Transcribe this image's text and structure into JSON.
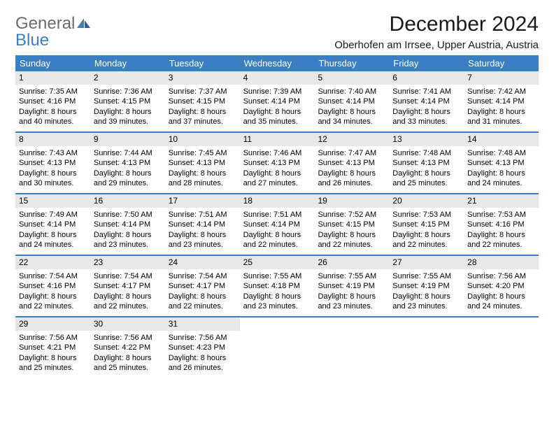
{
  "logo": {
    "general": "General",
    "blue": "Blue"
  },
  "title": "December 2024",
  "location": "Oberhofen am Irrsee, Upper Austria, Austria",
  "colors": {
    "header_bg": "#3a7fc4",
    "header_text": "#ffffff",
    "daynum_bg": "#e8e8e8",
    "week_divider": "#3a7fc4",
    "logo_gray": "#6c6c6c",
    "logo_blue": "#3a7fc4",
    "page_bg": "#ffffff",
    "text": "#000000"
  },
  "day_labels": [
    "Sunday",
    "Monday",
    "Tuesday",
    "Wednesday",
    "Thursday",
    "Friday",
    "Saturday"
  ],
  "weeks": [
    [
      {
        "num": "1",
        "sunrise": "Sunrise: 7:35 AM",
        "sunset": "Sunset: 4:16 PM",
        "daylight1": "Daylight: 8 hours",
        "daylight2": "and 40 minutes."
      },
      {
        "num": "2",
        "sunrise": "Sunrise: 7:36 AM",
        "sunset": "Sunset: 4:15 PM",
        "daylight1": "Daylight: 8 hours",
        "daylight2": "and 39 minutes."
      },
      {
        "num": "3",
        "sunrise": "Sunrise: 7:37 AM",
        "sunset": "Sunset: 4:15 PM",
        "daylight1": "Daylight: 8 hours",
        "daylight2": "and 37 minutes."
      },
      {
        "num": "4",
        "sunrise": "Sunrise: 7:39 AM",
        "sunset": "Sunset: 4:14 PM",
        "daylight1": "Daylight: 8 hours",
        "daylight2": "and 35 minutes."
      },
      {
        "num": "5",
        "sunrise": "Sunrise: 7:40 AM",
        "sunset": "Sunset: 4:14 PM",
        "daylight1": "Daylight: 8 hours",
        "daylight2": "and 34 minutes."
      },
      {
        "num": "6",
        "sunrise": "Sunrise: 7:41 AM",
        "sunset": "Sunset: 4:14 PM",
        "daylight1": "Daylight: 8 hours",
        "daylight2": "and 33 minutes."
      },
      {
        "num": "7",
        "sunrise": "Sunrise: 7:42 AM",
        "sunset": "Sunset: 4:14 PM",
        "daylight1": "Daylight: 8 hours",
        "daylight2": "and 31 minutes."
      }
    ],
    [
      {
        "num": "8",
        "sunrise": "Sunrise: 7:43 AM",
        "sunset": "Sunset: 4:13 PM",
        "daylight1": "Daylight: 8 hours",
        "daylight2": "and 30 minutes."
      },
      {
        "num": "9",
        "sunrise": "Sunrise: 7:44 AM",
        "sunset": "Sunset: 4:13 PM",
        "daylight1": "Daylight: 8 hours",
        "daylight2": "and 29 minutes."
      },
      {
        "num": "10",
        "sunrise": "Sunrise: 7:45 AM",
        "sunset": "Sunset: 4:13 PM",
        "daylight1": "Daylight: 8 hours",
        "daylight2": "and 28 minutes."
      },
      {
        "num": "11",
        "sunrise": "Sunrise: 7:46 AM",
        "sunset": "Sunset: 4:13 PM",
        "daylight1": "Daylight: 8 hours",
        "daylight2": "and 27 minutes."
      },
      {
        "num": "12",
        "sunrise": "Sunrise: 7:47 AM",
        "sunset": "Sunset: 4:13 PM",
        "daylight1": "Daylight: 8 hours",
        "daylight2": "and 26 minutes."
      },
      {
        "num": "13",
        "sunrise": "Sunrise: 7:48 AM",
        "sunset": "Sunset: 4:13 PM",
        "daylight1": "Daylight: 8 hours",
        "daylight2": "and 25 minutes."
      },
      {
        "num": "14",
        "sunrise": "Sunrise: 7:48 AM",
        "sunset": "Sunset: 4:13 PM",
        "daylight1": "Daylight: 8 hours",
        "daylight2": "and 24 minutes."
      }
    ],
    [
      {
        "num": "15",
        "sunrise": "Sunrise: 7:49 AM",
        "sunset": "Sunset: 4:14 PM",
        "daylight1": "Daylight: 8 hours",
        "daylight2": "and 24 minutes."
      },
      {
        "num": "16",
        "sunrise": "Sunrise: 7:50 AM",
        "sunset": "Sunset: 4:14 PM",
        "daylight1": "Daylight: 8 hours",
        "daylight2": "and 23 minutes."
      },
      {
        "num": "17",
        "sunrise": "Sunrise: 7:51 AM",
        "sunset": "Sunset: 4:14 PM",
        "daylight1": "Daylight: 8 hours",
        "daylight2": "and 23 minutes."
      },
      {
        "num": "18",
        "sunrise": "Sunrise: 7:51 AM",
        "sunset": "Sunset: 4:14 PM",
        "daylight1": "Daylight: 8 hours",
        "daylight2": "and 22 minutes."
      },
      {
        "num": "19",
        "sunrise": "Sunrise: 7:52 AM",
        "sunset": "Sunset: 4:15 PM",
        "daylight1": "Daylight: 8 hours",
        "daylight2": "and 22 minutes."
      },
      {
        "num": "20",
        "sunrise": "Sunrise: 7:53 AM",
        "sunset": "Sunset: 4:15 PM",
        "daylight1": "Daylight: 8 hours",
        "daylight2": "and 22 minutes."
      },
      {
        "num": "21",
        "sunrise": "Sunrise: 7:53 AM",
        "sunset": "Sunset: 4:16 PM",
        "daylight1": "Daylight: 8 hours",
        "daylight2": "and 22 minutes."
      }
    ],
    [
      {
        "num": "22",
        "sunrise": "Sunrise: 7:54 AM",
        "sunset": "Sunset: 4:16 PM",
        "daylight1": "Daylight: 8 hours",
        "daylight2": "and 22 minutes."
      },
      {
        "num": "23",
        "sunrise": "Sunrise: 7:54 AM",
        "sunset": "Sunset: 4:17 PM",
        "daylight1": "Daylight: 8 hours",
        "daylight2": "and 22 minutes."
      },
      {
        "num": "24",
        "sunrise": "Sunrise: 7:54 AM",
        "sunset": "Sunset: 4:17 PM",
        "daylight1": "Daylight: 8 hours",
        "daylight2": "and 22 minutes."
      },
      {
        "num": "25",
        "sunrise": "Sunrise: 7:55 AM",
        "sunset": "Sunset: 4:18 PM",
        "daylight1": "Daylight: 8 hours",
        "daylight2": "and 23 minutes."
      },
      {
        "num": "26",
        "sunrise": "Sunrise: 7:55 AM",
        "sunset": "Sunset: 4:19 PM",
        "daylight1": "Daylight: 8 hours",
        "daylight2": "and 23 minutes."
      },
      {
        "num": "27",
        "sunrise": "Sunrise: 7:55 AM",
        "sunset": "Sunset: 4:19 PM",
        "daylight1": "Daylight: 8 hours",
        "daylight2": "and 23 minutes."
      },
      {
        "num": "28",
        "sunrise": "Sunrise: 7:56 AM",
        "sunset": "Sunset: 4:20 PM",
        "daylight1": "Daylight: 8 hours",
        "daylight2": "and 24 minutes."
      }
    ],
    [
      {
        "num": "29",
        "sunrise": "Sunrise: 7:56 AM",
        "sunset": "Sunset: 4:21 PM",
        "daylight1": "Daylight: 8 hours",
        "daylight2": "and 25 minutes."
      },
      {
        "num": "30",
        "sunrise": "Sunrise: 7:56 AM",
        "sunset": "Sunset: 4:22 PM",
        "daylight1": "Daylight: 8 hours",
        "daylight2": "and 25 minutes."
      },
      {
        "num": "31",
        "sunrise": "Sunrise: 7:56 AM",
        "sunset": "Sunset: 4:23 PM",
        "daylight1": "Daylight: 8 hours",
        "daylight2": "and 26 minutes."
      },
      null,
      null,
      null,
      null
    ]
  ]
}
